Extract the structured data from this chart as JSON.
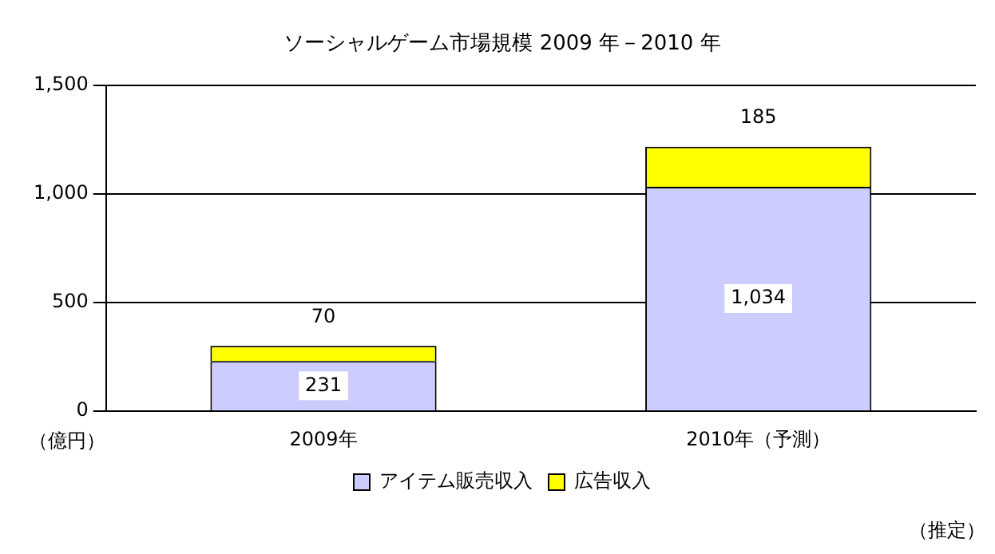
{
  "chart_data": {
    "type": "bar",
    "title": "ソーシャルゲーム市場規模 2009 年－2010 年",
    "ylabel": "（億円）",
    "categories": [
      "2009年",
      "2010年（予測）"
    ],
    "stacked": true,
    "series": [
      {
        "name": "アイテム販売収入",
        "color": "#ccccff",
        "values": [
          231,
          1034
        ],
        "value_labels": [
          "231",
          "1,034"
        ]
      },
      {
        "name": "広告収入",
        "color": "#ffff00",
        "values": [
          70,
          185
        ],
        "value_labels": [
          "70",
          "185"
        ]
      }
    ],
    "ylim": [
      0,
      1500
    ],
    "yticks": [
      0,
      500,
      {
        "value": 1000,
        "label": "1,000"
      },
      {
        "value": 1500,
        "label": "1,500"
      }
    ],
    "grid": "y",
    "legend": "bottom",
    "annotations": [
      "（推定）"
    ]
  }
}
